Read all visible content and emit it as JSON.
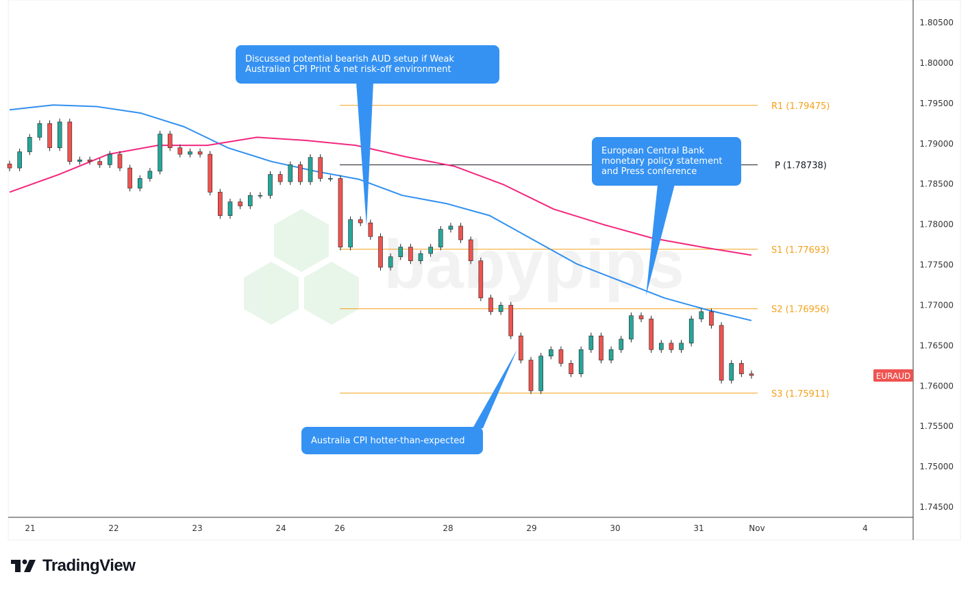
{
  "chart_data": {
    "type": "candlestick",
    "symbol": "EURAUD",
    "y_ticks": [
      "1.80500",
      "1.80000",
      "1.79500",
      "1.79000",
      "1.78500",
      "1.78000",
      "1.77500",
      "1.77000",
      "1.76500",
      "1.76000",
      "1.75500",
      "1.75000",
      "1.74500"
    ],
    "ylim": [
      1.745,
      1.805
    ],
    "x_ticks": [
      "21",
      "22",
      "23",
      "24",
      "26",
      "28",
      "29",
      "30",
      "31",
      "Nov",
      "4"
    ],
    "closes": [
      1.787,
      1.789,
      1.7908,
      1.7925,
      1.7895,
      1.7927,
      1.7878,
      1.788,
      1.7878,
      1.7874,
      1.7887,
      1.787,
      1.7845,
      1.7857,
      1.7866,
      1.7912,
      1.7895,
      1.7887,
      1.789,
      1.7887,
      1.784,
      1.7811,
      1.7828,
      1.7823,
      1.7836,
      1.7836,
      1.7862,
      1.7853,
      1.7874,
      1.7853,
      1.7883,
      1.7857,
      1.7857,
      1.7772,
      1.7806,
      1.7802,
      1.7785,
      1.7747,
      1.776,
      1.7772,
      1.7755,
      1.7764,
      1.7772,
      1.7794,
      1.7798,
      1.7781,
      1.7755,
      1.7709,
      1.7692,
      1.77,
      1.7662,
      1.7632,
      1.7594,
      1.7637,
      1.7645,
      1.7628,
      1.7615,
      1.7645,
      1.7662,
      1.7632,
      1.7645,
      1.7658,
      1.7687,
      1.7683,
      1.7645,
      1.7653,
      1.7645,
      1.7653,
      1.7683,
      1.7692,
      1.7675,
      1.7607,
      1.7628,
      1.7615,
      1.7613
    ],
    "ma_blue": [
      1.7942,
      1.7948,
      1.7946,
      1.7938,
      1.7921,
      1.7895,
      1.7878,
      1.7866,
      1.7856,
      1.7836,
      1.7826,
      1.7811,
      1.7781,
      1.7751,
      1.773,
      1.7709,
      1.7694,
      1.7681
    ],
    "ma_pink": [
      1.784,
      1.7862,
      1.7887,
      1.7898,
      1.7898,
      1.7908,
      1.7904,
      1.7898,
      1.7884,
      1.7872,
      1.7849,
      1.7819,
      1.78,
      1.7783,
      1.7772,
      1.7762
    ],
    "pivots": [
      {
        "label": "R1 (1.79475)",
        "value": 1.79475,
        "color": "#f5a01a"
      },
      {
        "label": "P (1.78738)",
        "value": 1.78738,
        "color": "#131722"
      },
      {
        "label": "S1 (1.77693)",
        "value": 1.77693,
        "color": "#f5a01a"
      },
      {
        "label": "S2 (1.76956)",
        "value": 1.76956,
        "color": "#f5a01a"
      },
      {
        "label": "S3 (1.75911)",
        "value": 1.75911,
        "color": "#f5a01a"
      }
    ],
    "last_price": 1.7613,
    "colors": {
      "up": "#26a69a",
      "down": "#ef5350",
      "ma_blue": "#2f8ff0",
      "ma_pink": "#f2277e",
      "callout": "#3592f2"
    },
    "annotations": [
      {
        "lines": [
          "Discussed potential bearish AUD setup if Weak",
          "Australian CPI Print & net risk-off environment"
        ]
      },
      {
        "lines": [
          "European Central Bank",
          "monetary policy statement",
          "and Press conference"
        ]
      },
      {
        "lines": [
          "Australia CPI hotter-than-expected"
        ]
      }
    ]
  },
  "watermark": "babypips",
  "brand": "TradingView"
}
